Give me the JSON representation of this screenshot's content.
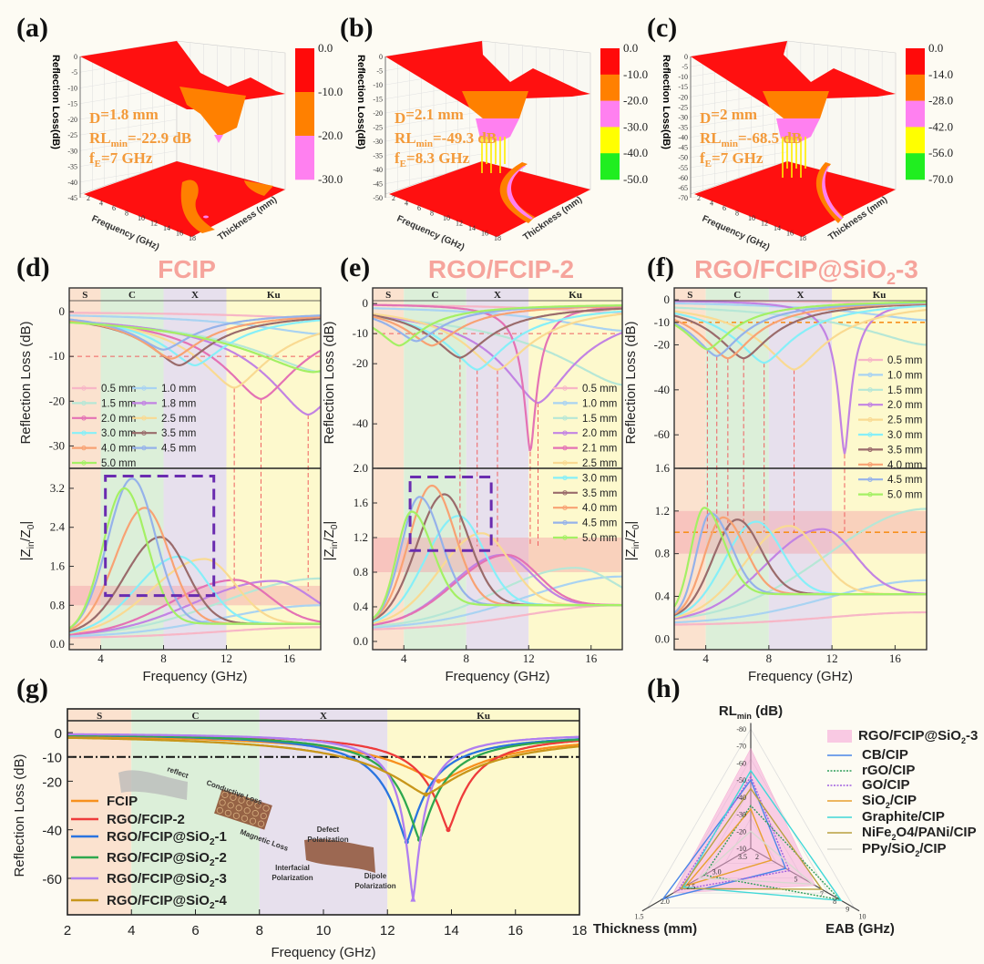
{
  "panel_labels": {
    "a": "(a)",
    "b": "(b)",
    "c": "(c)",
    "d": "(d)",
    "e": "(e)",
    "f": "(f)",
    "g": "(g)",
    "h": "(h)"
  },
  "panel_titles": {
    "d": "FCIP",
    "e": "RGO/FCIP-2",
    "f_main": "RGO/FCIP@SiO",
    "f_sub": "2",
    "f_tail": "-3"
  },
  "bands": {
    "labels": [
      "S",
      "C",
      "X",
      "Ku"
    ],
    "ranges": [
      [
        2,
        4
      ],
      [
        4,
        8
      ],
      [
        8,
        12
      ],
      [
        12,
        18
      ]
    ],
    "colors": [
      "#fbe2cf",
      "#dcefd9",
      "#e7e0ed",
      "#fdf9cd"
    ]
  },
  "chart_data": [
    {
      "panel": "(a)",
      "type": "surface3d",
      "zlabel": "Reflection Loss(dB)",
      "xlabel": "Frequency (GHz)",
      "ylabel": "Thickness (mm)",
      "z_ticks": [
        "0",
        "-5",
        "-10",
        "-15",
        "-20",
        "-25",
        "-30",
        "-35",
        "-40",
        "-45"
      ],
      "x_ticks": [
        "2",
        "4",
        "6",
        "8",
        "10",
        "12",
        "14",
        "16",
        "18"
      ],
      "colorbar": {
        "ticks": [
          "0.0",
          "-10.0",
          "-20.0",
          "-30.0"
        ],
        "colors": [
          "#ff0a0a",
          "#ff8000",
          "#ff80f0"
        ]
      },
      "annotation": {
        "d_label": "D",
        "d_value": "=1.8 mm",
        "rl_label": "RL",
        "rl_sub": "min",
        "rl_value": "=-22.9 dB",
        "fe_label": "f",
        "fe_sub": "E",
        "fe_value": "=7 GHz"
      }
    },
    {
      "panel": "(b)",
      "type": "surface3d",
      "zlabel": "Reflection Loss(dB)",
      "xlabel": "Frequency (GHz)",
      "ylabel": "Thickness (mm)",
      "z_ticks": [
        "0",
        "-5",
        "-10",
        "-15",
        "-20",
        "-25",
        "-30",
        "-35",
        "-40",
        "-45",
        "-50"
      ],
      "x_ticks": [
        "2",
        "4",
        "6",
        "8",
        "10",
        "12",
        "14",
        "16",
        "18"
      ],
      "colorbar": {
        "ticks": [
          "0.0",
          "-10.0",
          "-20.0",
          "-30.0",
          "-40.0",
          "-50.0"
        ],
        "colors": [
          "#ff0a0a",
          "#ff8000",
          "#ff80f0",
          "#ffff00",
          "#20ee20"
        ]
      },
      "annotation": {
        "d_label": "D",
        "d_value": "=2.1 mm",
        "rl_label": "RL",
        "rl_sub": "min",
        "rl_value": "=-49.3 dB",
        "fe_label": "f",
        "fe_sub": "E",
        "fe_value": "=8.3 GHz"
      }
    },
    {
      "panel": "(c)",
      "type": "surface3d",
      "zlabel": "Reflection Loss(dB)",
      "xlabel": "Frequency (GHz)",
      "ylabel": "Thickness (mm)",
      "z_ticks": [
        "0",
        "-5",
        "-10",
        "-15",
        "-20",
        "-25",
        "-30",
        "-35",
        "-40",
        "-45",
        "-50",
        "-55",
        "-60",
        "-65",
        "-70"
      ],
      "x_ticks": [
        "2",
        "4",
        "6",
        "8",
        "10",
        "12",
        "14",
        "16",
        "18"
      ],
      "colorbar": {
        "ticks": [
          "0.0",
          "-14.0",
          "-28.0",
          "-42.0",
          "-56.0",
          "-70.0"
        ],
        "colors": [
          "#ff0a0a",
          "#ff8000",
          "#ff80f0",
          "#ffff00",
          "#20ee20"
        ]
      },
      "annotation": {
        "d_label": "D",
        "d_value": "=2 mm",
        "rl_label": "RL",
        "rl_sub": "min",
        "rl_value": "=-68.5 dB",
        "fe_label": "f",
        "fe_sub": "E",
        "fe_value": "=7 GHz"
      }
    },
    {
      "panel": "(d)",
      "type": "line",
      "xlabel": "Frequency (GHz)",
      "ylabel_rl": "Reflection Loss (dB)",
      "ylabel_z_main": "|Z",
      "ylabel_z_sub1": "in",
      "ylabel_z_mid": "/Z",
      "ylabel_z_sub2": "0",
      "ylabel_z_end": "|",
      "xlim": [
        2,
        18
      ],
      "x_ticks": [
        "4",
        "8",
        "12",
        "16"
      ],
      "rl_ylim": [
        -35,
        5.3
      ],
      "rl_ticks": [
        "0",
        "-10",
        "-20",
        "-30"
      ],
      "z_ylim": [
        -0.11,
        3.61
      ],
      "z_ticks": [
        "0.0",
        "0.8",
        "1.6",
        "2.4",
        "3.2"
      ],
      "rl_reference": -10,
      "z_match_band": [
        0.8,
        1.2
      ],
      "highlight_box": {
        "x": [
          4.3,
          11.2
        ],
        "z": [
          1.0,
          3.45
        ]
      },
      "marked_minima_freqs": [
        12.5,
        14.2,
        17.2
      ],
      "series": [
        {
          "name": "0.5 mm",
          "color": "#f7b6c6",
          "rl_min": -1.5,
          "f_rl_min": 18,
          "z_peak": 0.35,
          "f_z_peak": 18
        },
        {
          "name": "1.0 mm",
          "color": "#a9d3f2",
          "rl_min": -5,
          "f_rl_min": 18,
          "z_peak": 0.8,
          "f_z_peak": 18
        },
        {
          "name": "1.5 mm",
          "color": "#b6e7d6",
          "rl_min": -13.5,
          "f_rl_min": 18,
          "z_peak": 1.35,
          "f_z_peak": 18
        },
        {
          "name": "1.8 mm",
          "color": "#c283e3",
          "rl_min": -23,
          "f_rl_min": 17.2,
          "z_peak": 1.3,
          "f_z_peak": 15
        },
        {
          "name": "2.0 mm",
          "color": "#e472b4",
          "rl_min": -19.5,
          "f_rl_min": 14.2,
          "z_peak": 1.32,
          "f_z_peak": 12.6
        },
        {
          "name": "2.5 mm",
          "color": "#f9da92",
          "rl_min": -17,
          "f_rl_min": 12.5,
          "z_peak": 1.75,
          "f_z_peak": 10.6
        },
        {
          "name": "3.0 mm",
          "color": "#86eff8",
          "rl_min": -12,
          "f_rl_min": 10,
          "z_peak": 1.8,
          "f_z_peak": 9
        },
        {
          "name": "3.5 mm",
          "color": "#9a6b6b",
          "rl_min": -12,
          "f_rl_min": 9,
          "z_peak": 2.2,
          "f_z_peak": 7.8
        },
        {
          "name": "4.0 mm",
          "color": "#f8a273",
          "rl_min": -10.5,
          "f_rl_min": 8.5,
          "z_peak": 2.8,
          "f_z_peak": 6.8
        },
        {
          "name": "4.5 mm",
          "color": "#95b2ea",
          "rl_min": -8.5,
          "f_rl_min": 8,
          "z_peak": 3.4,
          "f_z_peak": 6
        },
        {
          "name": "5.0 mm",
          "color": "#a4f064",
          "rl_min": -13.5,
          "f_rl_min": 17.5,
          "z_peak": 3.2,
          "f_z_peak": 5.5
        }
      ]
    },
    {
      "panel": "(e)",
      "type": "line",
      "xlabel": "Frequency (GHz)",
      "ylabel_rl": "Reflection Loss (dB)",
      "ylabel_z_main": "|Z",
      "ylabel_z_sub1": "in",
      "ylabel_z_mid": "/Z",
      "ylabel_z_sub2": "0",
      "ylabel_z_end": "|",
      "xlim": [
        2,
        18
      ],
      "x_ticks": [
        "4",
        "8",
        "12",
        "16"
      ],
      "rl_ylim": [
        -54.8,
        5.2
      ],
      "rl_ticks": [
        "0",
        "-10",
        "-20",
        "-40"
      ],
      "z_ylim": [
        -0.095,
        2.0
      ],
      "z_ticks": [
        "0.0",
        "0.4",
        "0.8",
        "1.2",
        "1.6",
        "2.0"
      ],
      "rl_reference": -10,
      "z_match_band": [
        0.8,
        1.2
      ],
      "highlight_box": {
        "x": [
          4.4,
          9.6
        ],
        "z": [
          1.05,
          1.9
        ]
      },
      "marked_minima_freqs": [
        7.6,
        8.7,
        10.0,
        12.1,
        12.6
      ],
      "series": [
        {
          "name": "0.5 mm",
          "color": "#f7b6c6",
          "rl_min": -3,
          "f_rl_min": 18,
          "z_peak": 0.42,
          "f_z_peak": 18
        },
        {
          "name": "1.0 mm",
          "color": "#a9d3f2",
          "rl_min": -9,
          "f_rl_min": 18,
          "z_peak": 0.75,
          "f_z_peak": 18
        },
        {
          "name": "1.5 mm",
          "color": "#b6e7d6",
          "rl_min": -27,
          "f_rl_min": 18,
          "z_peak": 0.85,
          "f_z_peak": 15
        },
        {
          "name": "2.0 mm",
          "color": "#c283e3",
          "rl_min": -33,
          "f_rl_min": 12.6,
          "z_peak": 1.0,
          "f_z_peak": 10.3
        },
        {
          "name": "2.1 mm",
          "color": "#e472b4",
          "rl_min": -49.3,
          "f_rl_min": 12.1,
          "z_peak": 1.0,
          "f_z_peak": 10.6
        },
        {
          "name": "2.5 mm",
          "color": "#f9da92",
          "rl_min": -22,
          "f_rl_min": 10,
          "z_peak": 1.25,
          "f_z_peak": 9
        },
        {
          "name": "3.0 mm",
          "color": "#86eff8",
          "rl_min": -22,
          "f_rl_min": 8.7,
          "z_peak": 1.45,
          "f_z_peak": 7.5
        },
        {
          "name": "3.5 mm",
          "color": "#9a6b6b",
          "rl_min": -18,
          "f_rl_min": 7.6,
          "z_peak": 1.7,
          "f_z_peak": 6.6
        },
        {
          "name": "4.0 mm",
          "color": "#f8a273",
          "rl_min": -14,
          "f_rl_min": 5.8,
          "z_peak": 1.8,
          "f_z_peak": 5.8
        },
        {
          "name": "4.5 mm",
          "color": "#95b2ea",
          "rl_min": -12.5,
          "f_rl_min": 4.8,
          "z_peak": 1.67,
          "f_z_peak": 5.0
        },
        {
          "name": "5.0 mm",
          "color": "#a4f064",
          "rl_min": -14,
          "f_rl_min": 3.7,
          "z_peak": 1.5,
          "f_z_peak": 4.5
        }
      ]
    },
    {
      "panel": "(f)",
      "type": "line",
      "xlabel": "Frequency (GHz)",
      "ylabel_rl": "Reflection Loss (dB)",
      "ylabel_z_main": "|Z",
      "ylabel_z_sub1": "in",
      "ylabel_z_mid": "/Z",
      "ylabel_z_sub2": "0",
      "ylabel_z_end": "|",
      "xlim": [
        2,
        18
      ],
      "x_ticks": [
        "4",
        "8",
        "12",
        "16"
      ],
      "rl_ylim": [
        -74.9,
        5.3
      ],
      "rl_ticks": [
        "0",
        "-10",
        "-20",
        "-40",
        "-60"
      ],
      "z_ylim": [
        -0.1,
        1.6
      ],
      "z_ticks": [
        "0.0",
        "0.4",
        "0.8",
        "1.2",
        "1.6"
      ],
      "rl_reference": -10,
      "z_reference": 1.0,
      "z_match_band": [
        0.8,
        1.2
      ],
      "marked_minima_freqs": [
        4.1,
        4.7,
        5.4,
        6.4,
        7.7,
        9.6,
        12.8
      ],
      "series": [
        {
          "name": "0.5 mm",
          "color": "#f7b6c6",
          "rl_min": -2,
          "f_rl_min": 18,
          "z_peak": 0.25,
          "f_z_peak": 18
        },
        {
          "name": "1.0 mm",
          "color": "#a9d3f2",
          "rl_min": -9,
          "f_rl_min": 18,
          "z_peak": 0.55,
          "f_z_peak": 18
        },
        {
          "name": "1.5 mm",
          "color": "#b6e7d6",
          "rl_min": -20,
          "f_rl_min": 18,
          "z_peak": 1.22,
          "f_z_peak": 18
        },
        {
          "name": "2.0 mm",
          "color": "#c283e3",
          "rl_min": -68.5,
          "f_rl_min": 12.8,
          "z_peak": 1.03,
          "f_z_peak": 11.4
        },
        {
          "name": "2.5 mm",
          "color": "#f9da92",
          "rl_min": -31,
          "f_rl_min": 9.6,
          "z_peak": 1.06,
          "f_z_peak": 9.3
        },
        {
          "name": "3.0 mm",
          "color": "#86eff8",
          "rl_min": -28,
          "f_rl_min": 7.7,
          "z_peak": 1.1,
          "f_z_peak": 7.2
        },
        {
          "name": "3.5 mm",
          "color": "#9a6b6b",
          "rl_min": -26,
          "f_rl_min": 6.4,
          "z_peak": 1.12,
          "f_z_peak": 6.0
        },
        {
          "name": "4.0 mm",
          "color": "#f8a273",
          "rl_min": -26,
          "f_rl_min": 5.4,
          "z_peak": 1.14,
          "f_z_peak": 5.1
        },
        {
          "name": "4.5 mm",
          "color": "#95b2ea",
          "rl_min": -25,
          "f_rl_min": 4.7,
          "z_peak": 1.18,
          "f_z_peak": 4.3
        },
        {
          "name": "5.0 mm",
          "color": "#a4f064",
          "rl_min": -22,
          "f_rl_min": 4.1,
          "z_peak": 1.23,
          "f_z_peak": 3.9
        }
      ]
    },
    {
      "panel": "(g)",
      "type": "line",
      "xlabel": "Frequency (GHz)",
      "ylabel": "Reflection Loss (dB)",
      "xlim": [
        2,
        18
      ],
      "x_ticks": [
        "2",
        "4",
        "6",
        "8",
        "10",
        "12",
        "14",
        "16",
        "18"
      ],
      "ylim": [
        -75,
        4.9
      ],
      "y_ticks": [
        "0",
        "-10",
        "-20",
        "-40",
        "-60"
      ],
      "rl_reference": -10,
      "illustration_labels": {
        "reflect": "reflect",
        "conductive": "Conductive Loss",
        "magnetic": "Magnetic Loss",
        "defect_1": "Defect",
        "defect_2": "Polarization",
        "interfacial_1": "Interfacial",
        "interfacial_2": "Polarization",
        "dipole_1": "Dipole",
        "dipole_2": "Polarization"
      },
      "series": [
        {
          "name_main": "FCIP",
          "name_sub": "",
          "name_tail": "",
          "color": "#f7901e",
          "rl_min": -20,
          "f_rl_min": 13.6,
          "marker": "circle"
        },
        {
          "name_main": "RGO/FCIP-2",
          "name_sub": "",
          "name_tail": "",
          "color": "#ee3b3b",
          "rl_min": -40,
          "f_rl_min": 13.9,
          "marker": "circle"
        },
        {
          "name_main": "RGO/FCIP@SiO",
          "name_sub": "2",
          "name_tail": "-1",
          "color": "#2a74e0",
          "rl_min": -45,
          "f_rl_min": 12.6,
          "marker": "circle"
        },
        {
          "name_main": "RGO/FCIP@SiO",
          "name_sub": "2",
          "name_tail": "-2",
          "color": "#2fa84f",
          "rl_min": -44,
          "f_rl_min": 13.0,
          "marker": "circle"
        },
        {
          "name_main": "RGO/FCIP@SiO",
          "name_sub": "2",
          "name_tail": "-3",
          "color": "#b07ef0",
          "rl_min": -68.5,
          "f_rl_min": 12.8,
          "marker": "star"
        },
        {
          "name_main": "RGO/FCIP@SiO",
          "name_sub": "2",
          "name_tail": "-4",
          "color": "#c8961a",
          "rl_min": -25.5,
          "f_rl_min": 13.2,
          "marker": "circle"
        }
      ]
    },
    {
      "panel": "(h)",
      "type": "radar",
      "axes": [
        {
          "label_main": "RL",
          "label_sub": "min",
          "label_tail": " (dB)",
          "range": [
            -10,
            -80
          ],
          "ticks": [
            "-10",
            "-20",
            "-30",
            "-40",
            "-50",
            "-60",
            "-70",
            "-80"
          ]
        },
        {
          "label_main": "Thickness (mm)",
          "label_sub": "",
          "label_tail": "",
          "range": [
            3.5,
            1.5
          ],
          "ticks": [
            "3.5",
            "3.0",
            "2.5",
            "2.0",
            "1.5"
          ]
        },
        {
          "label_main": "EAB (GHz)",
          "label_sub": "",
          "label_tail": "",
          "range": [
            2,
            10
          ],
          "ticks": [
            "2",
            "5",
            "7",
            "8",
            "9",
            "10"
          ]
        }
      ],
      "series": [
        {
          "name_main": "RGO/FCIP@SiO",
          "name_sub": "2",
          "name_tail": "-3",
          "color": "#f7a8d8",
          "style": "fill",
          "values": [
            -68.5,
            2.0,
            7.0
          ]
        },
        {
          "name_main": "CB/CIP",
          "name_sub": "",
          "name_tail": "",
          "color": "#4a86e8",
          "style": "solid",
          "values": [
            -50,
            1.8,
            4.7
          ]
        },
        {
          "name_main": "rGO/CIP",
          "name_sub": "",
          "name_tail": "",
          "color": "#2e9e5a",
          "style": "dotted",
          "values": [
            -35,
            2.6,
            8.9
          ]
        },
        {
          "name_main": "GO/CIP",
          "name_sub": "",
          "name_tail": "",
          "color": "#a060e0",
          "style": "dotted",
          "values": [
            -52,
            2.1,
            5.0
          ]
        },
        {
          "name_main": "SiO",
          "name_sub": "2",
          "name_tail": "/CIP",
          "color": "#e8a030",
          "style": "solid",
          "values": [
            -33,
            2.25,
            3.6
          ]
        },
        {
          "name_main": "Graphite/CIP",
          "name_sub": "",
          "name_tail": "",
          "color": "#40d8d8",
          "style": "solid",
          "values": [
            -55.5,
            2.2,
            9.0
          ]
        },
        {
          "name_main": "NiFe",
          "name_sub": "2",
          "name_tail": "O4/PANi/CIP",
          "color": "#b8a040",
          "style": "solid",
          "values": [
            -45,
            2.15,
            7.5
          ]
        },
        {
          "name_main": "PPy/SiO",
          "name_sub": "2",
          "name_tail": "/CIP",
          "color": "#d8d8d0",
          "style": "solid",
          "values": [
            -20,
            2.5,
            6.8
          ]
        }
      ]
    }
  ]
}
